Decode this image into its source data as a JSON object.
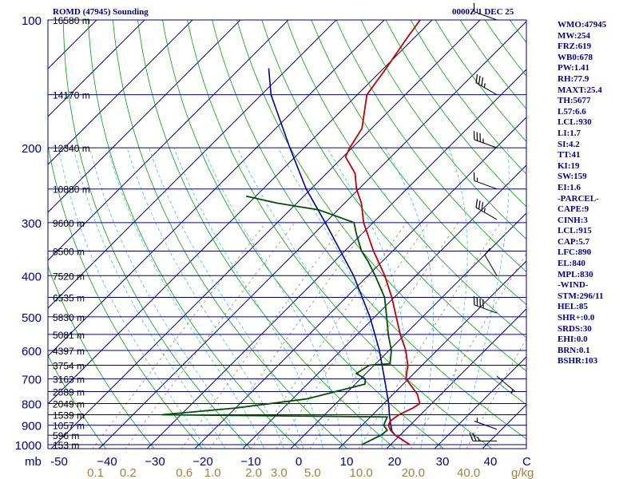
{
  "header": {
    "station": "ROMD (47945) Sounding",
    "time": "0000Z  1 DEC 25"
  },
  "indices": [
    "WMO:47945",
    "MW:254",
    "FRZ:619",
    "WB0:678",
    "PW:1.41",
    "RH:77.9",
    "MAXT:25.4",
    "TH:5677",
    "L57:6.6",
    "LCL:930",
    "LI:1.7",
    "SI:4.2",
    "TT:41",
    "KI:19",
    "SW:159",
    "EI:1.6",
    "-PARCEL-",
    "CAPE:9",
    "CINH:3",
    "LCL:915",
    "CAP:5.7",
    "LFC:890",
    "EL:840",
    "MPL:830",
    "-WIND-",
    "STM:296/11",
    "HEL:85",
    "SHR+:0.0",
    "SRDS:30",
    "EHI:0.0",
    "BRN:0.1",
    "BSHR:103"
  ],
  "colors": {
    "frame": "#000080",
    "isobar": "#000090",
    "isotherm": "#0000a0",
    "dry_adiabat": "#00a000",
    "moist_adiabat": "#40c0d8",
    "mixing_ratio": "#a08858",
    "temperature": "#c00000",
    "dewpoint": "#005000",
    "parcel": "#000090",
    "mr_labels": "#a08040",
    "barb": "#000000"
  },
  "chart_data": {
    "type": "skew-t log-p sounding",
    "pressure_axis": {
      "unit": "mb",
      "range": [
        1000,
        100
      ],
      "ticks": [
        100,
        200,
        300,
        400,
        500,
        600,
        700,
        800,
        900,
        1000
      ]
    },
    "temperature_axis": {
      "unit": "C",
      "ticks": [
        -50,
        -40,
        -30,
        -20,
        -10,
        0,
        10,
        20,
        30,
        40
      ]
    },
    "mixing_ratio_axis": {
      "unit": "g/kg",
      "ticks": [
        "0.1",
        "0.2",
        "0.6",
        "1.0",
        "2.0",
        "3.0",
        "5.0",
        "10.0",
        "20.0",
        "40.0"
      ]
    },
    "height_labels": [
      {
        "p": 100,
        "label": "16580 m"
      },
      {
        "p": 150,
        "label": "14170 m"
      },
      {
        "p": 200,
        "label": "12340 m"
      },
      {
        "p": 250,
        "label": "10880 m"
      },
      {
        "p": 300,
        "label": "9600 m"
      },
      {
        "p": 350,
        "label": "8500 m"
      },
      {
        "p": 400,
        "label": "7520 m"
      },
      {
        "p": 450,
        "label": "6535 m"
      },
      {
        "p": 500,
        "label": "5830 m"
      },
      {
        "p": 550,
        "label": "5081 m"
      },
      {
        "p": 600,
        "label": "4397 m"
      },
      {
        "p": 650,
        "label": "3754 m"
      },
      {
        "p": 700,
        "label": "3163 m"
      },
      {
        "p": 750,
        "label": "2589 m"
      },
      {
        "p": 800,
        "label": "2049 m"
      },
      {
        "p": 850,
        "label": "1539 m"
      },
      {
        "p": 900,
        "label": "1057 m"
      },
      {
        "p": 950,
        "label": "596 m"
      },
      {
        "p": 1000,
        "label": "153 m"
      }
    ],
    "temperature": [
      [
        1000,
        24.0
      ],
      [
        950,
        19.0
      ],
      [
        925,
        17.0
      ],
      [
        900,
        15.5
      ],
      [
        880,
        15.0
      ],
      [
        860,
        15.3
      ],
      [
        850,
        15.5
      ],
      [
        820,
        17.0
      ],
      [
        800,
        17.5
      ],
      [
        760,
        15.0
      ],
      [
        700,
        9.5
      ],
      [
        680,
        8.5
      ],
      [
        650,
        7.0
      ],
      [
        600,
        3.5
      ],
      [
        550,
        -1.0
      ],
      [
        500,
        -5.5
      ],
      [
        450,
        -10.5
      ],
      [
        400,
        -16.5
      ],
      [
        350,
        -24.0
      ],
      [
        300,
        -32.0
      ],
      [
        270,
        -36.5
      ],
      [
        250,
        -40.5
      ],
      [
        230,
        -44.0
      ],
      [
        210,
        -49.5
      ],
      [
        200,
        -50.5
      ],
      [
        180,
        -52.0
      ],
      [
        150,
        -58.0
      ],
      [
        130,
        -59.5
      ],
      [
        110,
        -61.5
      ],
      [
        100,
        -62.5
      ]
    ],
    "dewpoint": [
      [
        1000,
        14.0
      ],
      [
        950,
        16.0
      ],
      [
        925,
        16.3
      ],
      [
        900,
        14.5
      ],
      [
        880,
        14.0
      ],
      [
        860,
        13.5
      ],
      [
        850,
        -34.0
      ],
      [
        820,
        -20.0
      ],
      [
        780,
        -7.0
      ],
      [
        720,
        2.0
      ],
      [
        700,
        1.0
      ],
      [
        680,
        -2.0
      ],
      [
        650,
        -1.0
      ],
      [
        645,
        3.0
      ],
      [
        600,
        0.5
      ],
      [
        550,
        -3.5
      ],
      [
        500,
        -7.5
      ],
      [
        450,
        -12.0
      ],
      [
        400,
        -18.5
      ],
      [
        370,
        -23.0
      ],
      [
        350,
        -26.5
      ],
      [
        320,
        -31.0
      ],
      [
        300,
        -34.0
      ],
      [
        280,
        -44.0
      ],
      [
        270,
        -54.0
      ],
      [
        260,
        -62.0
      ]
    ],
    "parcel": [
      [
        1000,
        24.0
      ],
      [
        950,
        19.0
      ],
      [
        930,
        17.5
      ],
      [
        900,
        16.0
      ],
      [
        850,
        13.5
      ],
      [
        800,
        11.0
      ],
      [
        700,
        5.0
      ],
      [
        600,
        -2.0
      ],
      [
        500,
        -11.0
      ],
      [
        400,
        -23.0
      ],
      [
        300,
        -40.0
      ],
      [
        250,
        -51.0
      ],
      [
        200,
        -63.0
      ],
      [
        150,
        -78.0
      ],
      [
        130,
        -84.0
      ]
    ],
    "wind_barbs": [
      {
        "p": 980,
        "dir": 270,
        "kt": 25
      },
      {
        "p": 920,
        "dir": 290,
        "kt": 5
      },
      {
        "p": 690,
        "dir": 130,
        "kt": 5
      },
      {
        "p": 490,
        "dir": 290,
        "kt": 40
      },
      {
        "p": 400,
        "dir": 330,
        "kt": 10
      },
      {
        "p": 295,
        "dir": 300,
        "kt": 35
      },
      {
        "p": 250,
        "dir": 290,
        "kt": 15
      },
      {
        "p": 200,
        "dir": 290,
        "kt": 35
      },
      {
        "p": 150,
        "dir": 300,
        "kt": 35
      },
      {
        "p": 100,
        "dir": 290,
        "kt": 15
      }
    ]
  }
}
